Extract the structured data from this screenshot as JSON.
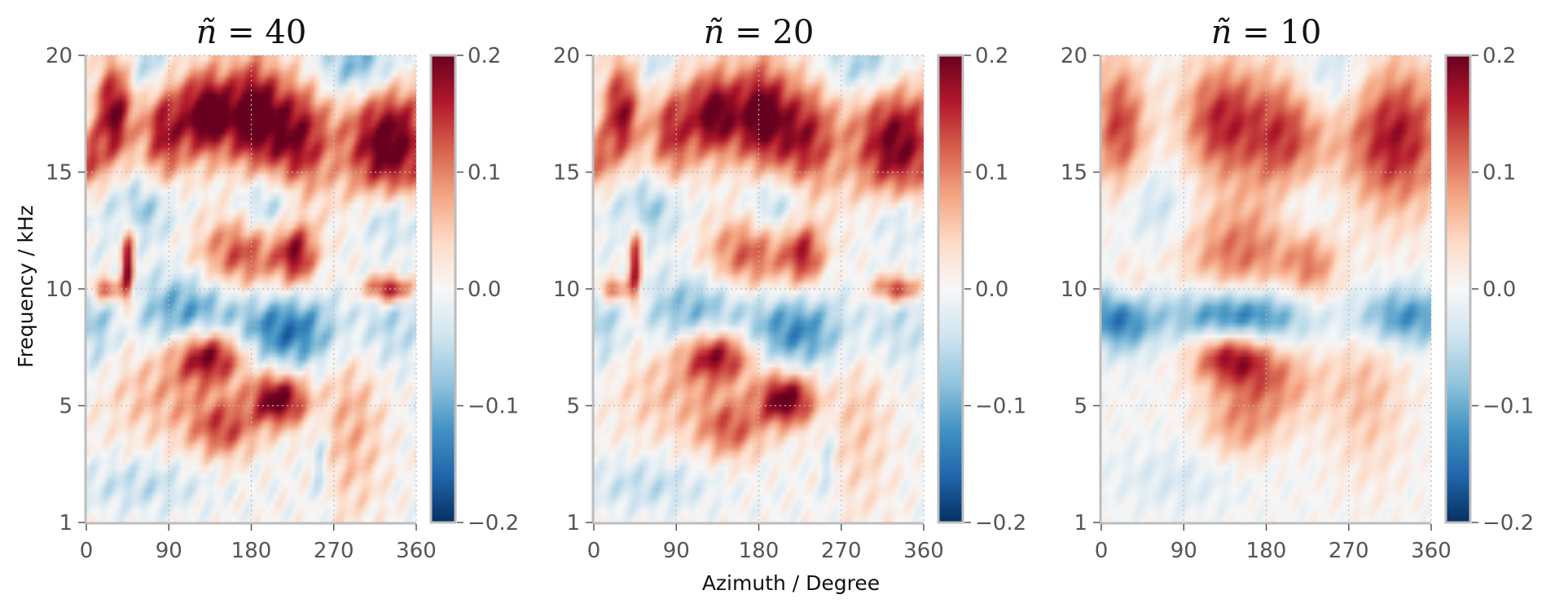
{
  "figure": {
    "xlabel": "Azimuth / Degree",
    "ylabel": "Frequency / kHz"
  },
  "chart_data": [
    {
      "type": "heatmap",
      "title": "ñ = 40",
      "title_prefix": "ñ",
      "title_value": "40",
      "x_range": [
        0,
        360
      ],
      "xticks": [
        0,
        90,
        180,
        270,
        360
      ],
      "ytick_labels": [
        "1",
        "5",
        "10",
        "15",
        "20"
      ],
      "colorbar": {
        "range": [
          -0.2,
          0.2
        ],
        "ticks": [
          "0.2",
          "0.1",
          "0.0",
          "−0.1",
          "−0.2"
        ],
        "colormap": "RdBu_r"
      },
      "grid": true,
      "smoothing": 1,
      "features": [
        {
          "az": 30,
          "f": 17.5,
          "v": 0.2,
          "sa": 14,
          "sf": 1.6
        },
        {
          "az": 85,
          "f": 16.8,
          "v": 0.17,
          "sa": 18,
          "sf": 1.6
        },
        {
          "az": 130,
          "f": 17.5,
          "v": 0.22,
          "sa": 18,
          "sf": 1.3
        },
        {
          "az": 180,
          "f": 17.5,
          "v": 0.22,
          "sa": 22,
          "sf": 1.6
        },
        {
          "az": 230,
          "f": 16.5,
          "v": 0.18,
          "sa": 25,
          "sf": 1.8
        },
        {
          "az": 330,
          "f": 16.2,
          "v": 0.22,
          "sa": 35,
          "sf": 2.0
        },
        {
          "az": 5,
          "f": 15.5,
          "v": 0.12,
          "sa": 10,
          "sf": 1.0
        },
        {
          "az": 70,
          "f": 19.5,
          "v": -0.08,
          "sa": 15,
          "sf": 1.0
        },
        {
          "az": 300,
          "f": 19.5,
          "v": -0.12,
          "sa": 35,
          "sf": 1.0
        },
        {
          "az": 60,
          "f": 13.5,
          "v": -0.08,
          "sa": 30,
          "sf": 1.0
        },
        {
          "az": 200,
          "f": 13.5,
          "v": -0.1,
          "sa": 25,
          "sf": 1.0
        },
        {
          "az": 330,
          "f": 13.2,
          "v": -0.1,
          "sa": 25,
          "sf": 1.0
        },
        {
          "az": 170,
          "f": 11.5,
          "v": 0.14,
          "sa": 35,
          "sf": 1.2
        },
        {
          "az": 230,
          "f": 11.5,
          "v": 0.16,
          "sa": 15,
          "sf": 1.0
        },
        {
          "az": 45,
          "f": 11.0,
          "v": 0.2,
          "sa": 5,
          "sf": 1.3
        },
        {
          "az": 20,
          "f": 10.0,
          "v": 0.16,
          "sa": 12,
          "sf": 0.4
        },
        {
          "az": 330,
          "f": 10.0,
          "v": 0.2,
          "sa": 18,
          "sf": 0.4
        },
        {
          "az": 110,
          "f": 9.0,
          "v": -0.12,
          "sa": 40,
          "sf": 1.2
        },
        {
          "az": 220,
          "f": 8.2,
          "v": -0.15,
          "sa": 40,
          "sf": 1.2
        },
        {
          "az": 10,
          "f": 8.5,
          "v": -0.07,
          "sa": 15,
          "sf": 1.5
        },
        {
          "az": 330,
          "f": 8.5,
          "v": -0.06,
          "sa": 30,
          "sf": 1.5
        },
        {
          "az": 135,
          "f": 7.2,
          "v": 0.2,
          "sa": 28,
          "sf": 0.8
        },
        {
          "az": 210,
          "f": 5.3,
          "v": 0.22,
          "sa": 22,
          "sf": 0.8
        },
        {
          "az": 150,
          "f": 4.2,
          "v": 0.12,
          "sa": 25,
          "sf": 0.9
        },
        {
          "az": 90,
          "f": 5.5,
          "v": 0.07,
          "sa": 50,
          "sf": 1.5
        },
        {
          "az": 290,
          "f": 4.5,
          "v": 0.07,
          "sa": 25,
          "sf": 3.0
        },
        {
          "az": 60,
          "f": 2.3,
          "v": -0.05,
          "sa": 50,
          "sf": 0.8
        },
        {
          "az": 255,
          "f": 3.0,
          "v": -0.06,
          "sa": 6,
          "sf": 1.5
        }
      ]
    },
    {
      "type": "heatmap",
      "title": "ñ = 20",
      "title_prefix": "ñ",
      "title_value": "20",
      "x_range": [
        0,
        360
      ],
      "xticks": [
        0,
        90,
        180,
        270,
        360
      ],
      "ytick_labels": [
        "1",
        "5",
        "10",
        "15",
        "20"
      ],
      "colorbar": {
        "range": [
          -0.2,
          0.2
        ],
        "ticks": [
          "0.2",
          "0.1",
          "0.0",
          "−0.1",
          "−0.2"
        ],
        "colormap": "RdBu_r"
      },
      "grid": true,
      "smoothing": 0.85,
      "features": [
        {
          "az": 30,
          "f": 17.5,
          "v": 0.18,
          "sa": 14,
          "sf": 1.6
        },
        {
          "az": 85,
          "f": 16.8,
          "v": 0.15,
          "sa": 18,
          "sf": 1.6
        },
        {
          "az": 130,
          "f": 17.5,
          "v": 0.2,
          "sa": 18,
          "sf": 1.3
        },
        {
          "az": 180,
          "f": 17.5,
          "v": 0.2,
          "sa": 22,
          "sf": 1.6
        },
        {
          "az": 230,
          "f": 16.5,
          "v": 0.16,
          "sa": 25,
          "sf": 1.8
        },
        {
          "az": 330,
          "f": 16.2,
          "v": 0.2,
          "sa": 35,
          "sf": 2.0
        },
        {
          "az": 5,
          "f": 15.5,
          "v": 0.1,
          "sa": 10,
          "sf": 1.0
        },
        {
          "az": 70,
          "f": 19.5,
          "v": -0.06,
          "sa": 15,
          "sf": 1.0
        },
        {
          "az": 300,
          "f": 19.5,
          "v": -0.09,
          "sa": 35,
          "sf": 1.0
        },
        {
          "az": 60,
          "f": 13.5,
          "v": -0.08,
          "sa": 30,
          "sf": 1.0
        },
        {
          "az": 200,
          "f": 13.5,
          "v": -0.09,
          "sa": 25,
          "sf": 1.0
        },
        {
          "az": 330,
          "f": 13.2,
          "v": -0.08,
          "sa": 25,
          "sf": 1.0
        },
        {
          "az": 170,
          "f": 11.5,
          "v": 0.13,
          "sa": 35,
          "sf": 1.2
        },
        {
          "az": 230,
          "f": 11.5,
          "v": 0.14,
          "sa": 15,
          "sf": 1.0
        },
        {
          "az": 45,
          "f": 11.0,
          "v": 0.18,
          "sa": 5,
          "sf": 1.3
        },
        {
          "az": 20,
          "f": 10.0,
          "v": 0.14,
          "sa": 12,
          "sf": 0.4
        },
        {
          "az": 330,
          "f": 10.0,
          "v": 0.17,
          "sa": 18,
          "sf": 0.4
        },
        {
          "az": 110,
          "f": 9.0,
          "v": -0.1,
          "sa": 40,
          "sf": 1.2
        },
        {
          "az": 220,
          "f": 8.2,
          "v": -0.13,
          "sa": 40,
          "sf": 1.2
        },
        {
          "az": 10,
          "f": 8.5,
          "v": -0.06,
          "sa": 15,
          "sf": 1.5
        },
        {
          "az": 330,
          "f": 8.5,
          "v": -0.05,
          "sa": 30,
          "sf": 1.5
        },
        {
          "az": 135,
          "f": 7.2,
          "v": 0.19,
          "sa": 28,
          "sf": 0.8
        },
        {
          "az": 210,
          "f": 5.3,
          "v": 0.22,
          "sa": 22,
          "sf": 0.8
        },
        {
          "az": 150,
          "f": 4.2,
          "v": 0.11,
          "sa": 25,
          "sf": 0.9
        },
        {
          "az": 90,
          "f": 5.5,
          "v": 0.06,
          "sa": 50,
          "sf": 1.5
        },
        {
          "az": 290,
          "f": 4.5,
          "v": 0.05,
          "sa": 25,
          "sf": 3.0
        },
        {
          "az": 60,
          "f": 2.3,
          "v": -0.05,
          "sa": 50,
          "sf": 0.8
        },
        {
          "az": 255,
          "f": 3.0,
          "v": -0.05,
          "sa": 6,
          "sf": 1.5
        }
      ]
    },
    {
      "type": "heatmap",
      "title": "ñ = 10",
      "title_prefix": "ñ",
      "title_value": "10",
      "x_range": [
        0,
        360
      ],
      "xticks": [
        0,
        90,
        180,
        270,
        360
      ],
      "ytick_labels": [
        "1",
        "5",
        "10",
        "15",
        "20"
      ],
      "colorbar": {
        "range": [
          -0.2,
          0.2
        ],
        "ticks": [
          "0.2",
          "0.1",
          "0.0",
          "−0.1",
          "−0.2"
        ],
        "colormap": "RdBu_r"
      },
      "grid": true,
      "smoothing": 0.6,
      "features": [
        {
          "az": 20,
          "f": 17.0,
          "v": 0.14,
          "sa": 20,
          "sf": 2.0
        },
        {
          "az": 130,
          "f": 17.2,
          "v": 0.15,
          "sa": 30,
          "sf": 1.8
        },
        {
          "az": 200,
          "f": 16.5,
          "v": 0.14,
          "sa": 30,
          "sf": 2.0
        },
        {
          "az": 320,
          "f": 16.5,
          "v": 0.17,
          "sa": 40,
          "sf": 2.2
        },
        {
          "az": 250,
          "f": 19.0,
          "v": -0.06,
          "sa": 30,
          "sf": 1.2
        },
        {
          "az": 60,
          "f": 13.5,
          "v": -0.05,
          "sa": 30,
          "sf": 1.2
        },
        {
          "az": 220,
          "f": 13.5,
          "v": -0.06,
          "sa": 25,
          "sf": 1.2
        },
        {
          "az": 150,
          "f": 11.5,
          "v": 0.11,
          "sa": 45,
          "sf": 1.5
        },
        {
          "az": 230,
          "f": 11.0,
          "v": 0.09,
          "sa": 20,
          "sf": 1.2
        },
        {
          "az": 30,
          "f": 10.0,
          "v": 0.07,
          "sa": 15,
          "sf": 0.8
        },
        {
          "az": 20,
          "f": 8.8,
          "v": -0.15,
          "sa": 25,
          "sf": 1.0
        },
        {
          "az": 150,
          "f": 8.8,
          "v": -0.17,
          "sa": 55,
          "sf": 0.9
        },
        {
          "az": 330,
          "f": 8.8,
          "v": -0.13,
          "sa": 40,
          "sf": 0.9
        },
        {
          "az": 140,
          "f": 7.2,
          "v": 0.16,
          "sa": 30,
          "sf": 0.8
        },
        {
          "az": 180,
          "f": 6.0,
          "v": 0.1,
          "sa": 40,
          "sf": 1.2
        },
        {
          "az": 150,
          "f": 4.2,
          "v": 0.07,
          "sa": 30,
          "sf": 1.0
        },
        {
          "az": 290,
          "f": 5.5,
          "v": 0.06,
          "sa": 30,
          "sf": 2.5
        },
        {
          "az": 80,
          "f": 2.5,
          "v": -0.03,
          "sa": 50,
          "sf": 1.0
        }
      ]
    }
  ]
}
